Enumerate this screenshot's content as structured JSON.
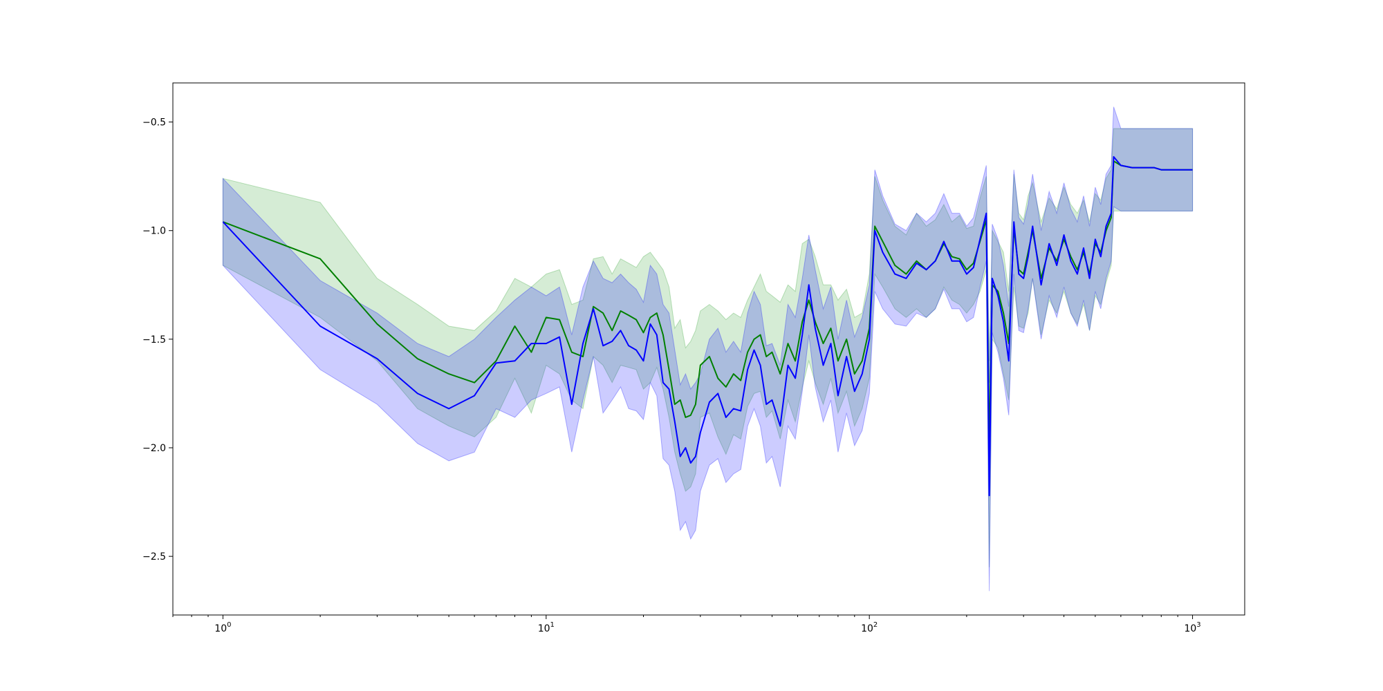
{
  "chart_data": {
    "type": "line",
    "title": "",
    "xlabel": "",
    "ylabel": "",
    "x_scale": "log",
    "xlim": [
      0.7,
      1450
    ],
    "ylim": [
      -2.77,
      -0.32
    ],
    "grid": false,
    "x_ticks": [
      {
        "value": 1,
        "base": "10",
        "exp": "0"
      },
      {
        "value": 10,
        "base": "10",
        "exp": "1"
      },
      {
        "value": 100,
        "base": "10",
        "exp": "2"
      },
      {
        "value": 1000,
        "base": "10",
        "exp": "3"
      }
    ],
    "y_ticks": [
      {
        "value": -0.5,
        "label": "−0.5"
      },
      {
        "value": -1.0,
        "label": "−1.0"
      },
      {
        "value": -1.5,
        "label": "−1.5"
      },
      {
        "value": -2.0,
        "label": "−2.0"
      },
      {
        "value": -2.5,
        "label": "−2.5"
      }
    ],
    "series": [
      {
        "color": "#008000",
        "band_color": "#2ca02c",
        "x": [
          1,
          2,
          3,
          4,
          5,
          6,
          7,
          8,
          9,
          10,
          11,
          12,
          13,
          14,
          15,
          16,
          17,
          18,
          19,
          20,
          21,
          22,
          23,
          24,
          25,
          26,
          27,
          28,
          29,
          30,
          32,
          34,
          36,
          38,
          40,
          42,
          44,
          46,
          48,
          50,
          53,
          56,
          59,
          62,
          65,
          68,
          72,
          76,
          80,
          85,
          90,
          95,
          100,
          104,
          110,
          120,
          130,
          140,
          150,
          160,
          170,
          180,
          190,
          200,
          210,
          220,
          230,
          235,
          240,
          250,
          260,
          270,
          280,
          290,
          300,
          310,
          320,
          340,
          360,
          380,
          400,
          420,
          440,
          460,
          480,
          500,
          520,
          540,
          560,
          570,
          600,
          650,
          700,
          760,
          800,
          900,
          1000
        ],
        "y": [
          -0.96,
          -1.13,
          -1.43,
          -1.59,
          -1.66,
          -1.7,
          -1.6,
          -1.44,
          -1.56,
          -1.4,
          -1.41,
          -1.56,
          -1.58,
          -1.35,
          -1.38,
          -1.46,
          -1.37,
          -1.39,
          -1.41,
          -1.47,
          -1.4,
          -1.38,
          -1.48,
          -1.64,
          -1.8,
          -1.78,
          -1.86,
          -1.85,
          -1.8,
          -1.62,
          -1.58,
          -1.68,
          -1.72,
          -1.66,
          -1.69,
          -1.56,
          -1.5,
          -1.48,
          -1.58,
          -1.56,
          -1.66,
          -1.52,
          -1.6,
          -1.42,
          -1.32,
          -1.42,
          -1.52,
          -1.45,
          -1.6,
          -1.5,
          -1.66,
          -1.6,
          -1.45,
          -0.98,
          -1.05,
          -1.16,
          -1.2,
          -1.14,
          -1.18,
          -1.14,
          -1.06,
          -1.12,
          -1.13,
          -1.18,
          -1.15,
          -1.05,
          -0.95,
          -2.0,
          -1.25,
          -1.28,
          -1.38,
          -1.52,
          -0.99,
          -1.18,
          -1.2,
          -1.1,
          -1.0,
          -1.22,
          -1.08,
          -1.14,
          -1.04,
          -1.12,
          -1.18,
          -1.1,
          -1.2,
          -1.06,
          -1.1,
          -1.0,
          -0.94,
          -0.68,
          -0.7,
          -0.71,
          -0.71,
          -0.71,
          -0.72,
          -0.72,
          -0.72
        ],
        "band_upper": [
          -0.76,
          -0.87,
          -1.22,
          -1.34,
          -1.44,
          -1.46,
          -1.37,
          -1.22,
          -1.26,
          -1.2,
          -1.18,
          -1.34,
          -1.32,
          -1.13,
          -1.12,
          -1.2,
          -1.13,
          -1.15,
          -1.17,
          -1.12,
          -1.1,
          -1.14,
          -1.18,
          -1.26,
          -1.45,
          -1.41,
          -1.54,
          -1.51,
          -1.46,
          -1.37,
          -1.34,
          -1.37,
          -1.41,
          -1.38,
          -1.4,
          -1.32,
          -1.26,
          -1.2,
          -1.28,
          -1.3,
          -1.33,
          -1.25,
          -1.28,
          -1.06,
          -1.04,
          -1.12,
          -1.25,
          -1.25,
          -1.32,
          -1.27,
          -1.4,
          -1.38,
          -1.2,
          -0.75,
          -0.86,
          -0.98,
          -1.02,
          -0.92,
          -0.98,
          -0.95,
          -0.88,
          -0.96,
          -0.93,
          -0.99,
          -0.98,
          -0.85,
          -0.75,
          -1.6,
          -1.0,
          -1.05,
          -1.1,
          -1.28,
          -0.74,
          -0.92,
          -0.95,
          -0.84,
          -0.78,
          -0.96,
          -0.85,
          -0.9,
          -0.8,
          -0.88,
          -0.92,
          -0.86,
          -0.96,
          -0.83,
          -0.86,
          -0.76,
          -0.72,
          -0.53,
          -0.53,
          -0.53,
          -0.53,
          -0.53,
          -0.53,
          -0.53,
          -0.53
        ],
        "band_lower": [
          -1.16,
          -1.4,
          -1.6,
          -1.82,
          -1.9,
          -1.95,
          -1.86,
          -1.68,
          -1.84,
          -1.62,
          -1.66,
          -1.78,
          -1.82,
          -1.58,
          -1.62,
          -1.7,
          -1.62,
          -1.63,
          -1.64,
          -1.73,
          -1.7,
          -1.63,
          -1.73,
          -1.86,
          -2.02,
          -2.12,
          -2.2,
          -2.18,
          -2.12,
          -1.86,
          -1.84,
          -1.95,
          -2.03,
          -1.94,
          -1.96,
          -1.81,
          -1.75,
          -1.74,
          -1.86,
          -1.83,
          -1.96,
          -1.78,
          -1.88,
          -1.72,
          -1.6,
          -1.7,
          -1.8,
          -1.68,
          -1.84,
          -1.74,
          -1.9,
          -1.82,
          -1.68,
          -1.2,
          -1.26,
          -1.36,
          -1.4,
          -1.36,
          -1.4,
          -1.36,
          -1.26,
          -1.32,
          -1.34,
          -1.38,
          -1.34,
          -1.28,
          -1.18,
          -2.55,
          -1.5,
          -1.54,
          -1.66,
          -1.78,
          -1.26,
          -1.44,
          -1.45,
          -1.38,
          -1.22,
          -1.48,
          -1.32,
          -1.38,
          -1.28,
          -1.38,
          -1.43,
          -1.34,
          -1.46,
          -1.3,
          -1.34,
          -1.24,
          -1.16,
          -0.91,
          -0.91,
          -0.91,
          -0.91,
          -0.91,
          -0.91,
          -0.91,
          -0.91
        ]
      },
      {
        "color": "#0000ff",
        "band_color": "#0000ff",
        "x": [
          1,
          2,
          3,
          4,
          5,
          6,
          7,
          8,
          9,
          10,
          11,
          12,
          13,
          14,
          15,
          16,
          17,
          18,
          19,
          20,
          21,
          22,
          23,
          24,
          25,
          26,
          27,
          28,
          29,
          30,
          32,
          34,
          36,
          38,
          40,
          42,
          44,
          46,
          48,
          50,
          53,
          56,
          59,
          62,
          65,
          68,
          72,
          76,
          80,
          85,
          90,
          95,
          100,
          104,
          110,
          120,
          130,
          140,
          150,
          160,
          170,
          180,
          190,
          200,
          210,
          220,
          230,
          235,
          240,
          250,
          260,
          270,
          280,
          290,
          300,
          310,
          320,
          340,
          360,
          380,
          400,
          420,
          440,
          460,
          480,
          500,
          520,
          540,
          560,
          570,
          600,
          650,
          700,
          760,
          800,
          900,
          1000
        ],
        "y": [
          -0.96,
          -1.44,
          -1.59,
          -1.75,
          -1.82,
          -1.76,
          -1.61,
          -1.6,
          -1.52,
          -1.52,
          -1.49,
          -1.8,
          -1.52,
          -1.36,
          -1.53,
          -1.51,
          -1.46,
          -1.53,
          -1.55,
          -1.6,
          -1.43,
          -1.48,
          -1.7,
          -1.73,
          -1.88,
          -2.04,
          -2.0,
          -2.07,
          -2.04,
          -1.93,
          -1.79,
          -1.75,
          -1.86,
          -1.82,
          -1.83,
          -1.64,
          -1.55,
          -1.62,
          -1.8,
          -1.78,
          -1.9,
          -1.62,
          -1.68,
          -1.48,
          -1.25,
          -1.45,
          -1.62,
          -1.52,
          -1.76,
          -1.58,
          -1.74,
          -1.66,
          -1.5,
          -1.0,
          -1.1,
          -1.2,
          -1.22,
          -1.15,
          -1.18,
          -1.14,
          -1.05,
          -1.14,
          -1.14,
          -1.2,
          -1.17,
          -1.04,
          -0.92,
          -2.22,
          -1.22,
          -1.3,
          -1.42,
          -1.6,
          -0.96,
          -1.2,
          -1.22,
          -1.12,
          -0.98,
          -1.25,
          -1.06,
          -1.16,
          -1.02,
          -1.14,
          -1.2,
          -1.08,
          -1.22,
          -1.04,
          -1.12,
          -0.98,
          -0.92,
          -0.66,
          -0.7,
          -0.71,
          -0.71,
          -0.71,
          -0.72,
          -0.72,
          -0.72
        ],
        "band_upper": [
          -0.76,
          -1.23,
          -1.38,
          -1.52,
          -1.58,
          -1.5,
          -1.4,
          -1.32,
          -1.26,
          -1.3,
          -1.26,
          -1.48,
          -1.26,
          -1.14,
          -1.22,
          -1.24,
          -1.2,
          -1.24,
          -1.27,
          -1.33,
          -1.16,
          -1.2,
          -1.34,
          -1.38,
          -1.55,
          -1.71,
          -1.66,
          -1.73,
          -1.7,
          -1.66,
          -1.5,
          -1.45,
          -1.56,
          -1.51,
          -1.56,
          -1.38,
          -1.28,
          -1.34,
          -1.53,
          -1.52,
          -1.62,
          -1.34,
          -1.4,
          -1.22,
          -1.02,
          -1.18,
          -1.36,
          -1.26,
          -1.5,
          -1.32,
          -1.49,
          -1.4,
          -1.25,
          -0.72,
          -0.84,
          -0.97,
          -1.0,
          -0.92,
          -0.96,
          -0.92,
          -0.83,
          -0.92,
          -0.92,
          -0.98,
          -0.94,
          -0.82,
          -0.7,
          -1.7,
          -0.97,
          -1.04,
          -1.16,
          -1.35,
          -0.72,
          -0.94,
          -0.97,
          -0.88,
          -0.74,
          -1.0,
          -0.82,
          -0.92,
          -0.78,
          -0.9,
          -0.96,
          -0.84,
          -0.98,
          -0.8,
          -0.88,
          -0.74,
          -0.7,
          -0.43,
          -0.53,
          -0.53,
          -0.53,
          -0.53,
          -0.53,
          -0.53,
          -0.53
        ],
        "band_lower": [
          -1.16,
          -1.64,
          -1.8,
          -1.98,
          -2.06,
          -2.02,
          -1.82,
          -1.86,
          -1.78,
          -1.75,
          -1.72,
          -2.02,
          -1.78,
          -1.58,
          -1.84,
          -1.78,
          -1.72,
          -1.82,
          -1.83,
          -1.87,
          -1.7,
          -1.76,
          -2.05,
          -2.08,
          -2.2,
          -2.38,
          -2.34,
          -2.42,
          -2.38,
          -2.2,
          -2.08,
          -2.05,
          -2.16,
          -2.12,
          -2.1,
          -1.9,
          -1.82,
          -1.9,
          -2.07,
          -2.04,
          -2.18,
          -1.9,
          -1.96,
          -1.74,
          -1.48,
          -1.72,
          -1.88,
          -1.78,
          -2.02,
          -1.84,
          -1.99,
          -1.92,
          -1.75,
          -1.28,
          -1.36,
          -1.43,
          -1.44,
          -1.38,
          -1.4,
          -1.36,
          -1.27,
          -1.36,
          -1.36,
          -1.42,
          -1.4,
          -1.26,
          -1.14,
          -2.66,
          -1.47,
          -1.56,
          -1.68,
          -1.85,
          -1.2,
          -1.46,
          -1.47,
          -1.36,
          -1.22,
          -1.5,
          -1.3,
          -1.4,
          -1.26,
          -1.38,
          -1.44,
          -1.32,
          -1.46,
          -1.28,
          -1.36,
          -1.22,
          -1.14,
          -0.89,
          -0.91,
          -0.91,
          -0.91,
          -0.91,
          -0.91,
          -0.91,
          -0.91
        ]
      }
    ]
  }
}
